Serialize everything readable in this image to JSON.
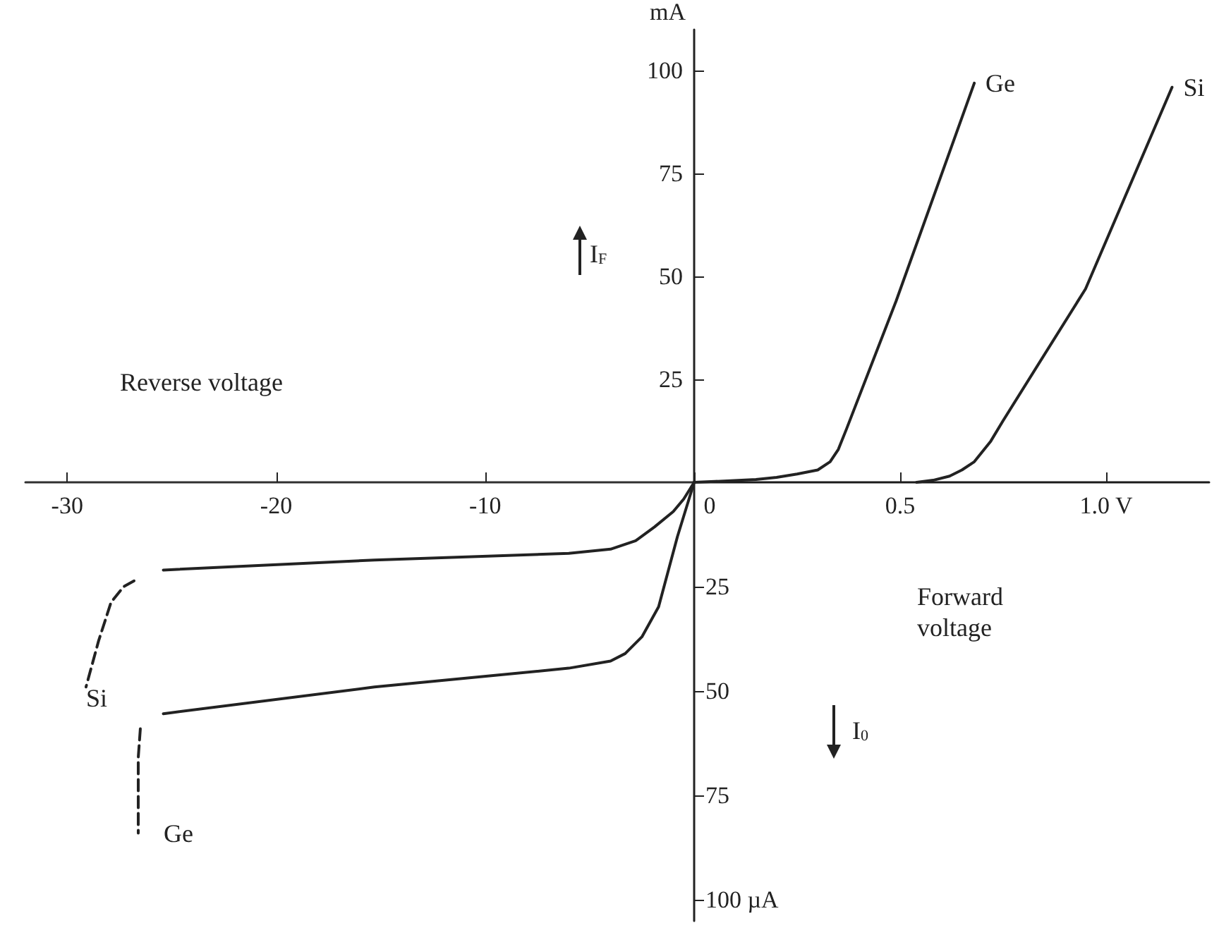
{
  "chart_data": [
    {
      "type": "line",
      "xlabel": "Forward voltage",
      "ylabel": "mA",
      "annotations": [
        "I$_{F}$"
      ],
      "xlim": [
        0,
        1.25
      ],
      "ylim": [
        0,
        110
      ],
      "xticks": [
        0,
        0.5,
        {
          "value": 1.0,
          "label": "1.0 V"
        }
      ],
      "yticks": [
        25,
        50,
        75,
        100
      ],
      "marker": "none",
      "line_style": "solid",
      "legend": false,
      "series": [
        {
          "name": "Ge",
          "color": "#222222",
          "x": [
            0,
            0.05,
            0.15,
            0.2,
            0.25,
            0.3,
            0.33,
            0.35,
            0.37,
            0.49,
            0.68
          ],
          "values": [
            0,
            0.2,
            0.7,
            1.2,
            2,
            3,
            5,
            8,
            13,
            44,
            97
          ]
        },
        {
          "name": "Si",
          "color": "#222222",
          "x": [
            0.54,
            0.58,
            0.62,
            0.65,
            0.68,
            0.72,
            0.75,
            0.95,
            1.16
          ],
          "values": [
            0,
            0.5,
            1.5,
            3,
            5,
            10,
            15,
            47,
            96
          ]
        }
      ]
    },
    {
      "type": "line",
      "xlabel": "Reverse voltage",
      "annotations": [
        "I$_{0}$"
      ],
      "xlim": [
        -32,
        0
      ],
      "ylim": [
        105,
        0
      ],
      "xticks": [
        -30,
        -20,
        -10
      ],
      "yticks": [
        25,
        50,
        75,
        {
          "value": 100,
          "label": "100 µA"
        }
      ],
      "marker": "none",
      "line_style": "solid",
      "legend": false,
      "series": [
        {
          "color": "#222222",
          "x": [
            0,
            -0.5,
            -1,
            -1.9,
            -2.8,
            -4,
            -6,
            -15.3,
            -25.4
          ],
          "values": [
            0,
            4,
            7,
            10.7,
            14,
            16,
            17,
            18.6,
            21
          ]
        },
        {
          "name": "Si",
          "color": "#222222",
          "line_style": "dashed",
          "x": [
            -26.8,
            -27.3,
            -27.9,
            -28.5,
            -29.1
          ],
          "values": [
            23.6,
            25,
            28.7,
            38,
            49
          ]
        },
        {
          "color": "#222222",
          "x": [
            0,
            -0.8,
            -1.7,
            -2.5,
            -3.3,
            -4,
            -6,
            -15.3,
            -25.4
          ],
          "values": [
            0,
            13,
            29.8,
            37,
            41,
            42.8,
            44.5,
            49,
            55.4
          ]
        },
        {
          "name": "Ge",
          "color": "#222222",
          "line_style": "dashed",
          "x": [
            -26.5,
            -26.6,
            -26.6
          ],
          "values": [
            59,
            65.9,
            84
          ]
        }
      ]
    }
  ]
}
